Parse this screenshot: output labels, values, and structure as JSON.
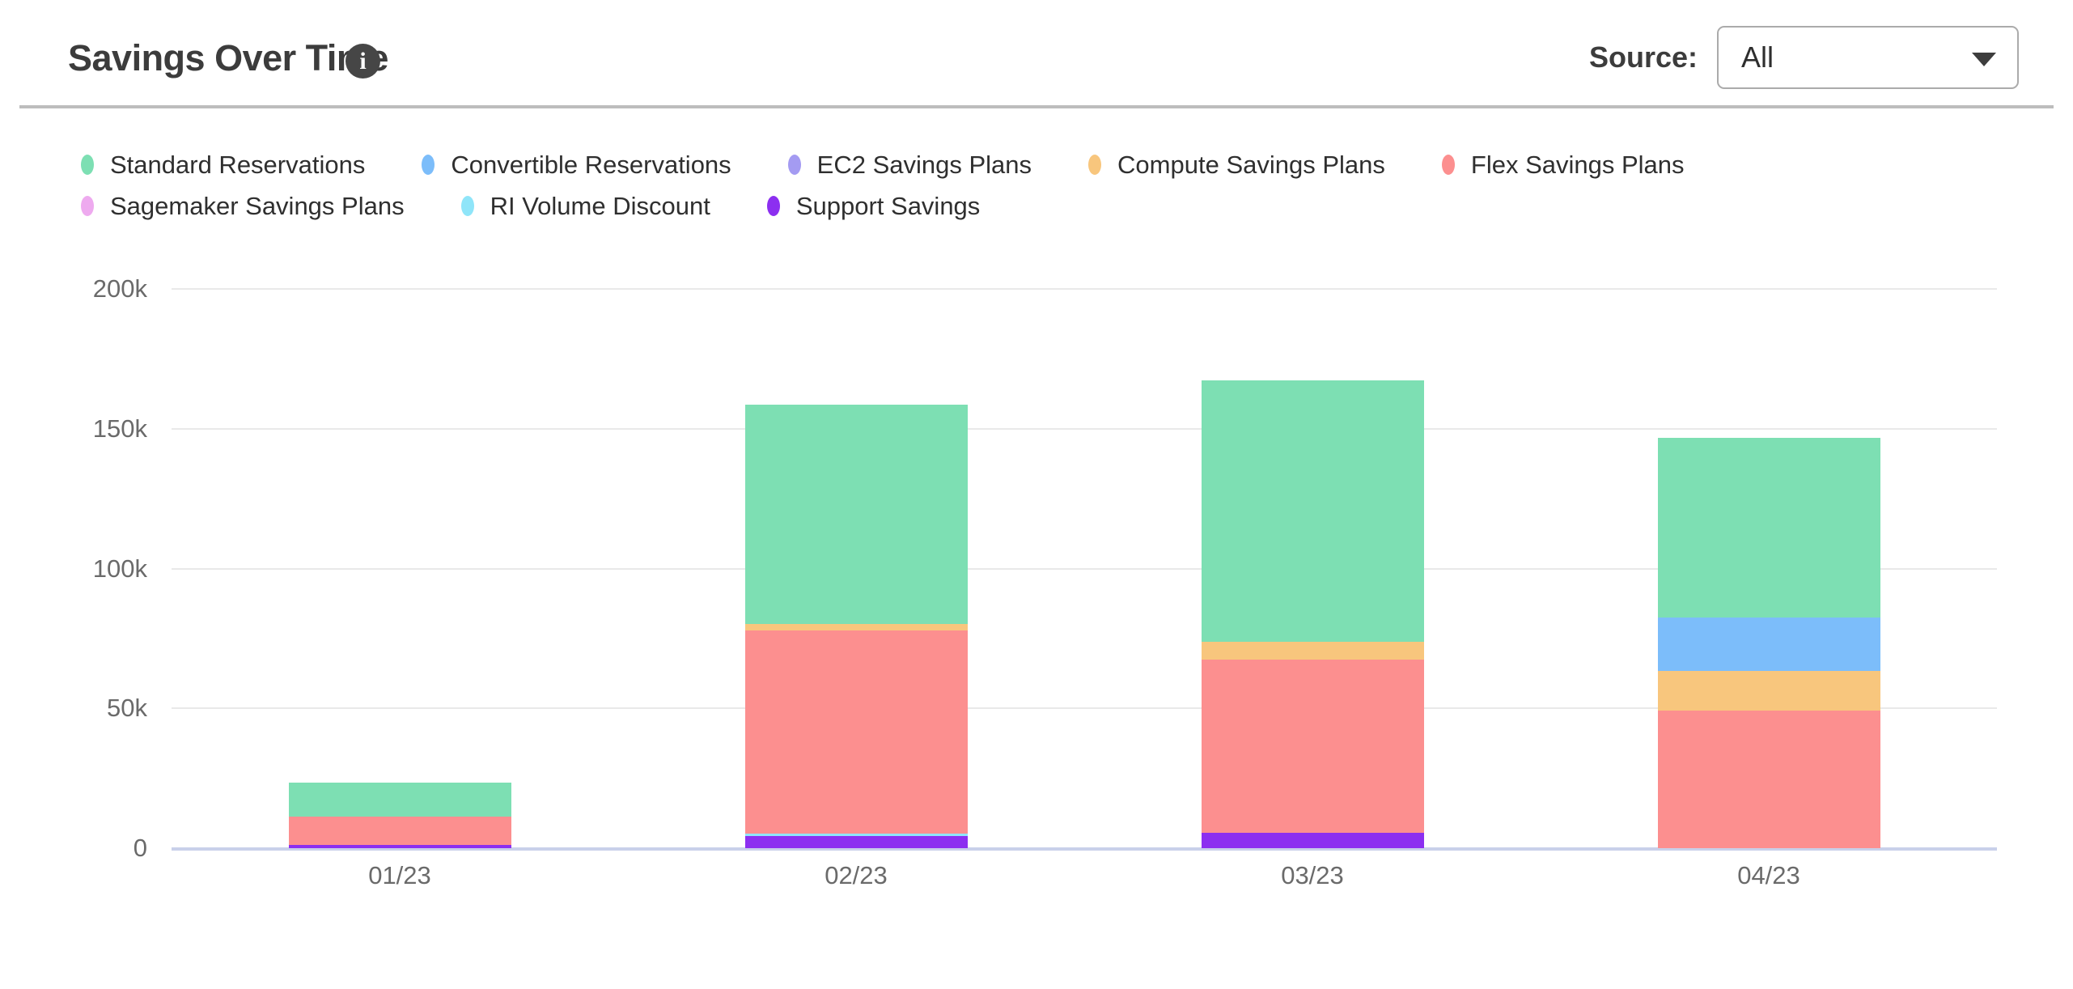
{
  "header": {
    "title": "Savings Over Time",
    "info_glyph": "i",
    "source_label": "Source:",
    "source_value": "All",
    "icons": [
      "info-icon",
      "chevron-down-icon"
    ]
  },
  "colors": {
    "title_text": "#3C3C3C",
    "legend_text": "#2F2F2F",
    "tick_text": "#6A6A6A",
    "gridline": "#E9E9E9",
    "axis_baseline": "#C9D0EA",
    "divider": "#BDBDBD",
    "info_icon_bg": "#464646",
    "dropdown_border": "#ABABAB"
  },
  "chart_data": {
    "type": "bar",
    "stacked": true,
    "title": "Savings Over Time",
    "categories": [
      "01/23",
      "02/23",
      "03/23",
      "04/23"
    ],
    "series": [
      {
        "name": "Standard Reservations",
        "color": "#7DDFB3",
        "values": [
          12100,
          78600,
          93400,
          64200
        ]
      },
      {
        "name": "Convertible Reservations",
        "color": "#7CBDFA",
        "values": [
          0,
          0,
          0,
          19100
        ]
      },
      {
        "name": "EC2 Savings Plans",
        "color": "#A49BF2",
        "values": [
          0,
          0,
          0,
          0
        ]
      },
      {
        "name": "Compute Savings Plans",
        "color": "#F8C67D",
        "values": [
          0,
          2300,
          6400,
          14400
        ]
      },
      {
        "name": "Flex Savings Plans",
        "color": "#FC8F8F",
        "values": [
          9900,
          72500,
          62000,
          49100
        ]
      },
      {
        "name": "Sagemaker Savings Plans",
        "color": "#EEAAEF",
        "values": [
          0,
          0,
          0,
          0
        ]
      },
      {
        "name": "RI Volume Discount",
        "color": "#8FE5F9",
        "values": [
          0,
          900,
          0,
          0
        ]
      },
      {
        "name": "Support Savings",
        "color": "#8C2FF0",
        "values": [
          1300,
          4400,
          5500,
          0
        ]
      }
    ],
    "stack_order_bottom_to_top": [
      "Support Savings",
      "RI Volume Discount",
      "Sagemaker Savings Plans",
      "Flex Savings Plans",
      "Compute Savings Plans",
      "EC2 Savings Plans",
      "Convertible Reservations",
      "Standard Reservations"
    ],
    "totals": [
      23300,
      158700,
      167300,
      146800
    ],
    "ylim": [
      0,
      200000
    ],
    "yticks": [
      {
        "value": 0,
        "label": "0"
      },
      {
        "value": 50000,
        "label": "50k"
      },
      {
        "value": 100000,
        "label": "100k"
      },
      {
        "value": 150000,
        "label": "150k"
      },
      {
        "value": 200000,
        "label": "200k"
      }
    ],
    "grid": true,
    "legend_position": "top"
  }
}
